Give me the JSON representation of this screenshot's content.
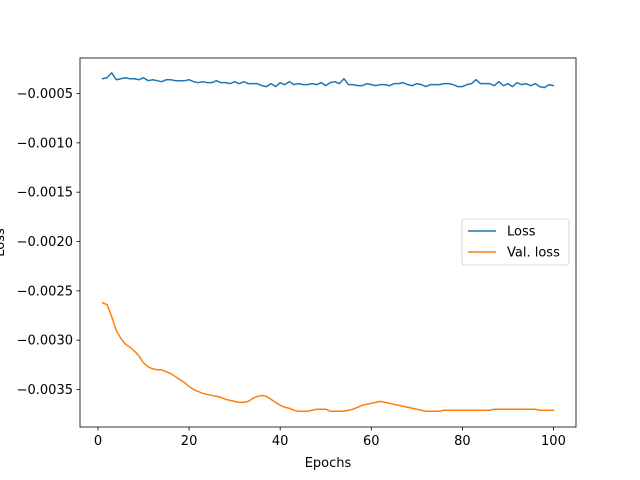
{
  "chart_data": {
    "type": "line",
    "title": "",
    "xlabel": "Epochs",
    "ylabel": "Loss",
    "xlim": [
      -3.95,
      104.95
    ],
    "ylim": [
      -0.00388,
      -0.00014
    ],
    "xticks": [
      0,
      20,
      40,
      60,
      80,
      100
    ],
    "xtick_labels": [
      "0",
      "20",
      "40",
      "60",
      "80",
      "100"
    ],
    "yticks": [
      -0.0005,
      -0.001,
      -0.0015,
      -0.002,
      -0.0025,
      -0.003,
      -0.0035
    ],
    "ytick_labels": [
      "−0.0005",
      "−0.0010",
      "−0.0015",
      "−0.0020",
      "−0.0025",
      "−0.0030",
      "−0.0035"
    ],
    "grid": false,
    "legend_position": "center-right",
    "series": [
      {
        "name": "Loss",
        "color": "#1f77b4",
        "x": [
          1,
          2,
          3,
          4,
          5,
          6,
          7,
          8,
          9,
          10,
          11,
          12,
          13,
          14,
          15,
          16,
          17,
          18,
          19,
          20,
          21,
          22,
          23,
          24,
          25,
          26,
          27,
          28,
          29,
          30,
          31,
          32,
          33,
          34,
          35,
          36,
          37,
          38,
          39,
          40,
          41,
          42,
          43,
          44,
          45,
          46,
          47,
          48,
          49,
          50,
          51,
          52,
          53,
          54,
          55,
          56,
          57,
          58,
          59,
          60,
          61,
          62,
          63,
          64,
          65,
          66,
          67,
          68,
          69,
          70,
          71,
          72,
          73,
          74,
          75,
          76,
          77,
          78,
          79,
          80,
          81,
          82,
          83,
          84,
          85,
          86,
          87,
          88,
          89,
          90,
          91,
          92,
          93,
          94,
          95,
          96,
          97,
          98,
          99,
          100
        ],
        "y": [
          -0.00035,
          -0.00034,
          -0.00029,
          -0.00036,
          -0.00035,
          -0.00034,
          -0.00035,
          -0.00035,
          -0.00036,
          -0.00034,
          -0.00037,
          -0.00036,
          -0.00037,
          -0.00038,
          -0.00036,
          -0.00036,
          -0.00037,
          -0.00037,
          -0.00037,
          -0.00036,
          -0.00038,
          -0.00039,
          -0.00038,
          -0.00039,
          -0.00039,
          -0.00037,
          -0.00039,
          -0.00039,
          -0.0004,
          -0.00038,
          -0.0004,
          -0.00038,
          -0.0004,
          -0.0004,
          -0.0004,
          -0.00042,
          -0.00043,
          -0.0004,
          -0.00043,
          -0.00039,
          -0.00041,
          -0.00038,
          -0.00041,
          -0.0004,
          -0.00041,
          -0.00041,
          -0.0004,
          -0.00041,
          -0.00039,
          -0.00042,
          -0.00039,
          -0.00038,
          -0.0004,
          -0.00035,
          -0.00041,
          -0.00041,
          -0.00042,
          -0.00042,
          -0.0004,
          -0.00041,
          -0.00042,
          -0.00041,
          -0.00041,
          -0.00042,
          -0.0004,
          -0.0004,
          -0.00039,
          -0.00041,
          -0.00042,
          -0.0004,
          -0.00041,
          -0.00043,
          -0.00041,
          -0.00041,
          -0.00041,
          -0.0004,
          -0.0004,
          -0.00041,
          -0.00043,
          -0.00043,
          -0.00041,
          -0.0004,
          -0.00036,
          -0.0004,
          -0.0004,
          -0.0004,
          -0.00042,
          -0.00038,
          -0.00042,
          -0.0004,
          -0.00043,
          -0.00039,
          -0.00041,
          -0.0004,
          -0.00042,
          -0.0004,
          -0.00043,
          -0.00044,
          -0.00041,
          -0.00042
        ]
      },
      {
        "name": "Val. loss",
        "color": "#ff7f0e",
        "x": [
          1,
          2,
          3,
          4,
          5,
          6,
          7,
          8,
          9,
          10,
          11,
          12,
          13,
          14,
          15,
          16,
          17,
          18,
          19,
          20,
          21,
          22,
          23,
          24,
          25,
          26,
          27,
          28,
          29,
          30,
          31,
          32,
          33,
          34,
          35,
          36,
          37,
          38,
          39,
          40,
          41,
          42,
          43,
          44,
          45,
          46,
          47,
          48,
          49,
          50,
          51,
          52,
          53,
          54,
          55,
          56,
          57,
          58,
          59,
          60,
          61,
          62,
          63,
          64,
          65,
          66,
          67,
          68,
          69,
          70,
          71,
          72,
          73,
          74,
          75,
          76,
          77,
          78,
          79,
          80,
          81,
          82,
          83,
          84,
          85,
          86,
          87,
          88,
          89,
          90,
          91,
          92,
          93,
          94,
          95,
          96,
          97,
          98,
          99,
          100
        ],
        "y": [
          -0.00262,
          -0.00264,
          -0.00276,
          -0.0029,
          -0.00298,
          -0.00304,
          -0.00307,
          -0.00311,
          -0.00316,
          -0.00323,
          -0.00327,
          -0.00329,
          -0.0033,
          -0.0033,
          -0.00332,
          -0.00334,
          -0.00337,
          -0.0034,
          -0.00343,
          -0.00347,
          -0.0035,
          -0.00352,
          -0.00354,
          -0.00355,
          -0.00356,
          -0.00357,
          -0.00358,
          -0.0036,
          -0.00361,
          -0.00362,
          -0.00363,
          -0.00363,
          -0.00362,
          -0.00359,
          -0.00357,
          -0.00356,
          -0.00357,
          -0.0036,
          -0.00363,
          -0.00366,
          -0.00368,
          -0.00369,
          -0.00371,
          -0.00372,
          -0.00372,
          -0.00372,
          -0.00371,
          -0.0037,
          -0.0037,
          -0.0037,
          -0.00372,
          -0.00372,
          -0.00372,
          -0.00372,
          -0.00371,
          -0.0037,
          -0.00368,
          -0.00366,
          -0.00365,
          -0.00364,
          -0.00363,
          -0.00362,
          -0.00363,
          -0.00364,
          -0.00365,
          -0.00366,
          -0.00367,
          -0.00368,
          -0.00369,
          -0.0037,
          -0.00371,
          -0.00372,
          -0.00372,
          -0.00372,
          -0.00372,
          -0.00371,
          -0.00371,
          -0.00371,
          -0.00371,
          -0.00371,
          -0.00371,
          -0.00371,
          -0.00371,
          -0.00371,
          -0.00371,
          -0.00371,
          -0.0037,
          -0.0037,
          -0.0037,
          -0.0037,
          -0.0037,
          -0.0037,
          -0.0037,
          -0.0037,
          -0.0037,
          -0.0037,
          -0.00371,
          -0.00371,
          -0.00371,
          -0.00371
        ]
      }
    ]
  }
}
